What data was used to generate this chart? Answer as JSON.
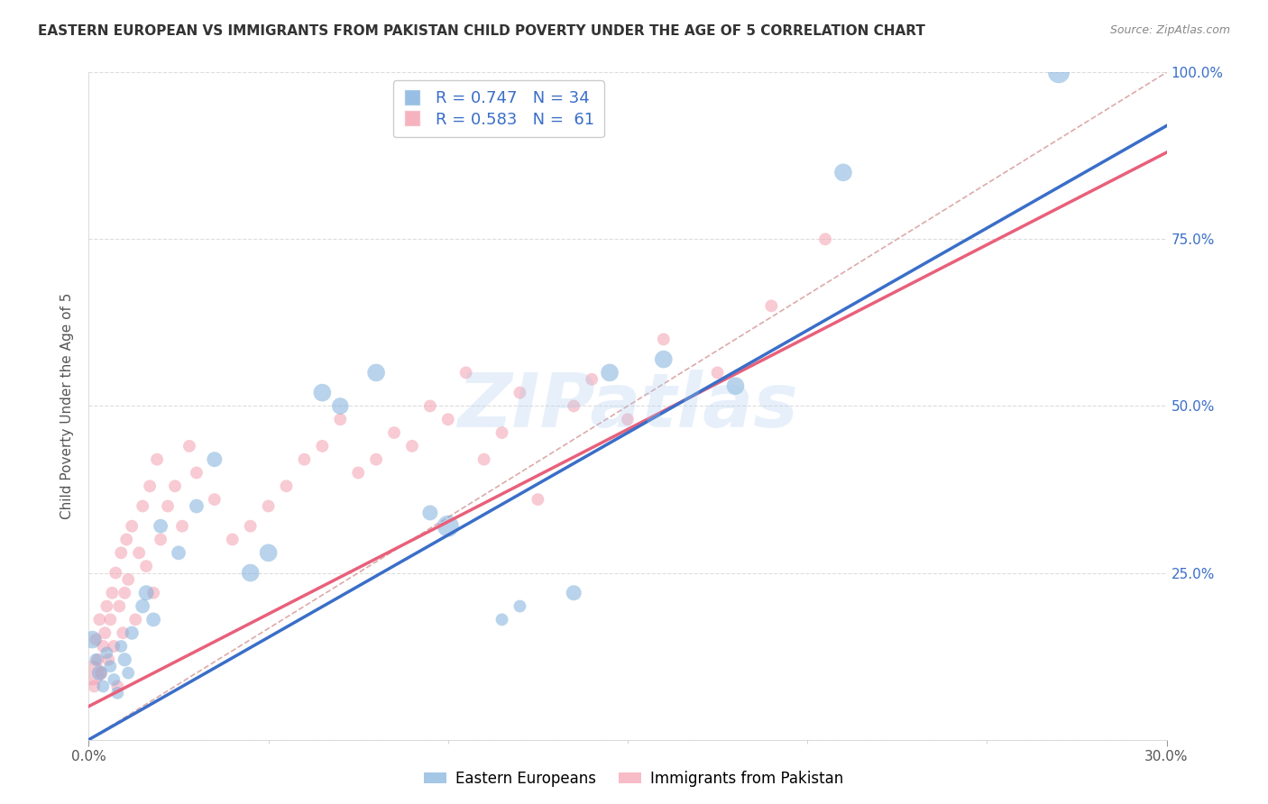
{
  "title": "EASTERN EUROPEAN VS IMMIGRANTS FROM PAKISTAN CHILD POVERTY UNDER THE AGE OF 5 CORRELATION CHART",
  "source": "Source: ZipAtlas.com",
  "ylabel": "Child Poverty Under the Age of 5",
  "watermark": "ZIPatlas",
  "legend1_label": "R = 0.747   N = 34",
  "legend2_label": "R = 0.583   N =  61",
  "legend1_bottom": "Eastern Europeans",
  "legend2_bottom": "Immigrants from Pakistan",
  "blue_color": "#7EB0DC",
  "pink_color": "#F4A0B0",
  "blue_line_color": "#3A6EC8",
  "pink_line_color": "#E8607A",
  "diag_color": "#CCCCCC",
  "blue_scatter_x": [
    0.1,
    0.2,
    0.3,
    0.4,
    0.5,
    0.6,
    0.7,
    0.8,
    0.9,
    1.0,
    1.1,
    1.2,
    1.5,
    1.6,
    1.8,
    2.0,
    2.5,
    3.0,
    3.5,
    4.5,
    5.0,
    6.5,
    7.0,
    8.0,
    9.5,
    10.0,
    11.5,
    12.0,
    13.5,
    14.5,
    16.0,
    18.0,
    21.0,
    27.0
  ],
  "blue_scatter_y": [
    15,
    12,
    10,
    8,
    13,
    11,
    9,
    7,
    14,
    12,
    10,
    16,
    20,
    22,
    18,
    32,
    28,
    35,
    42,
    25,
    28,
    52,
    50,
    55,
    34,
    32,
    18,
    20,
    22,
    55,
    57,
    53,
    85,
    100
  ],
  "blue_scatter_s": [
    200,
    100,
    150,
    100,
    100,
    100,
    100,
    100,
    100,
    120,
    100,
    120,
    130,
    150,
    130,
    130,
    130,
    130,
    150,
    200,
    200,
    200,
    180,
    200,
    150,
    300,
    100,
    100,
    150,
    200,
    200,
    200,
    200,
    300
  ],
  "pink_scatter_x": [
    0.1,
    0.15,
    0.2,
    0.25,
    0.3,
    0.35,
    0.4,
    0.45,
    0.5,
    0.55,
    0.6,
    0.65,
    0.7,
    0.75,
    0.8,
    0.85,
    0.9,
    0.95,
    1.0,
    1.05,
    1.1,
    1.2,
    1.3,
    1.4,
    1.5,
    1.6,
    1.7,
    1.8,
    1.9,
    2.0,
    2.2,
    2.4,
    2.6,
    2.8,
    3.0,
    3.5,
    4.0,
    4.5,
    5.0,
    5.5,
    6.0,
    6.5,
    7.0,
    7.5,
    8.0,
    8.5,
    9.0,
    9.5,
    10.0,
    10.5,
    11.0,
    11.5,
    12.0,
    12.5,
    13.5,
    14.0,
    15.0,
    16.0,
    17.5,
    19.0,
    20.5
  ],
  "pink_scatter_y": [
    10,
    8,
    15,
    12,
    18,
    10,
    14,
    16,
    20,
    12,
    18,
    22,
    14,
    25,
    8,
    20,
    28,
    16,
    22,
    30,
    24,
    32,
    18,
    28,
    35,
    26,
    38,
    22,
    42,
    30,
    35,
    38,
    32,
    44,
    40,
    36,
    30,
    32,
    35,
    38,
    42,
    44,
    48,
    40,
    42,
    46,
    44,
    50,
    48,
    55,
    42,
    46,
    52,
    36,
    50,
    54,
    48,
    60,
    55,
    65,
    75
  ],
  "pink_scatter_s": [
    400,
    100,
    100,
    100,
    100,
    100,
    100,
    100,
    100,
    100,
    100,
    100,
    100,
    100,
    100,
    100,
    100,
    100,
    100,
    100,
    100,
    100,
    100,
    100,
    100,
    100,
    100,
    100,
    100,
    100,
    100,
    100,
    100,
    100,
    100,
    100,
    100,
    100,
    100,
    100,
    100,
    100,
    100,
    100,
    100,
    100,
    100,
    100,
    100,
    100,
    100,
    100,
    100,
    100,
    100,
    100,
    100,
    100,
    100,
    100,
    100
  ],
  "blue_line_x": [
    0,
    30
  ],
  "blue_line_y": [
    0,
    92
  ],
  "pink_line_x": [
    0,
    30
  ],
  "pink_line_y": [
    5,
    88
  ],
  "diag_line_x": [
    0,
    30
  ],
  "diag_line_y": [
    0,
    100
  ],
  "xlim": [
    0,
    30
  ],
  "ylim": [
    0,
    100
  ],
  "yticks": [
    0,
    25,
    50,
    75,
    100
  ],
  "ytick_labels_right": [
    "",
    "25.0%",
    "50.0%",
    "75.0%",
    "100.0%"
  ],
  "xtick_positions": [
    0,
    30
  ],
  "xtick_labels": [
    "0.0%",
    "30.0%"
  ],
  "grid_color": "#DDDDDD",
  "background_color": "#FFFFFF"
}
